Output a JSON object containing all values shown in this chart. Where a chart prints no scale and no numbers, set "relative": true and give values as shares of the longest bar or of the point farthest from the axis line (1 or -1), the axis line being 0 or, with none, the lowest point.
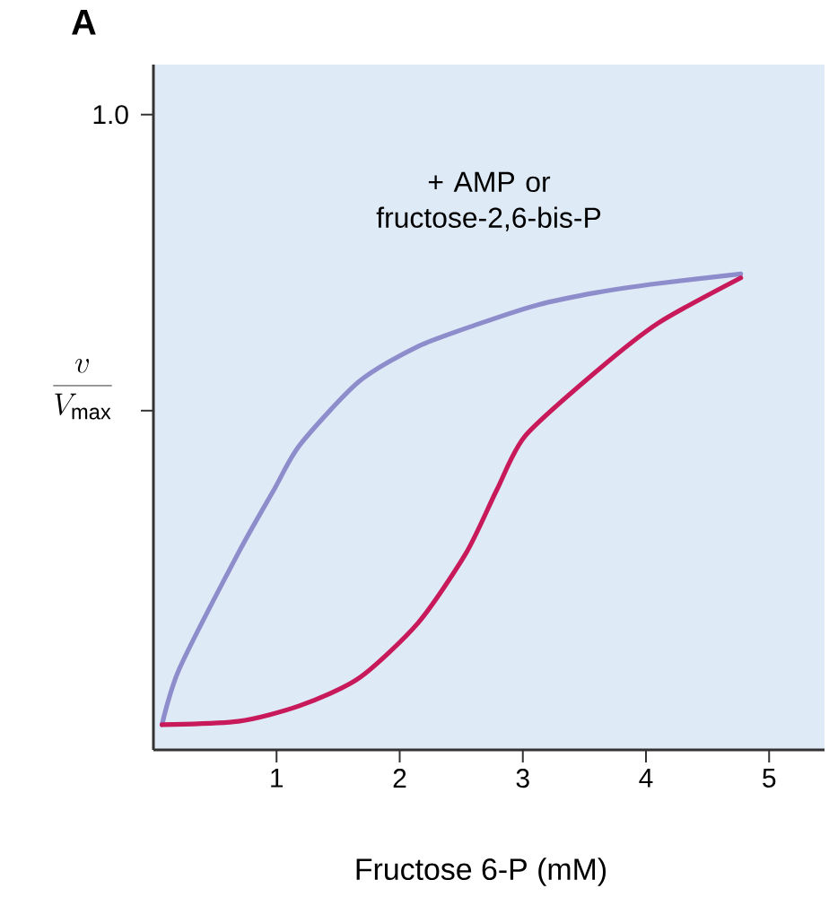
{
  "chart_data": {
    "type": "line",
    "title": "A",
    "xlabel": "Fructose 6-P (mM)",
    "ylabel": "\\frac{v}{V_{\\mathrm{max}}}",
    "annotations": [
      "+ AMP or fructose-2,6-bis-P",
      "1.0"
    ],
    "xlim": [
      0,
      5.45
    ],
    "xticks": [
      1,
      2,
      3,
      4,
      5
    ],
    "relative": true,
    "marker": "none",
    "line_style": "solid",
    "series": [
      {
        "color": "#8d8dcc",
        "x": [
          0.07,
          0.21,
          0.69,
          0.98,
          1.19,
          1.67,
          2.15,
          2.64,
          3.12,
          3.6,
          4.1,
          4.77
        ],
        "values": [
          0.053,
          0.17,
          0.414,
          0.547,
          0.641,
          0.774,
          0.848,
          0.895,
          0.935,
          0.961,
          0.98,
          1
        ]
      },
      {
        "color": "#c8195a",
        "x": [
          0.07,
          0.69,
          1.19,
          1.67,
          2.15,
          2.54,
          2.79,
          3.02,
          3.6,
          4.1,
          4.77
        ],
        "values": [
          0.053,
          0.06,
          0.093,
          0.151,
          0.267,
          0.414,
          0.547,
          0.66,
          0.796,
          0.897,
          0.992
        ]
      }
    ]
  }
}
